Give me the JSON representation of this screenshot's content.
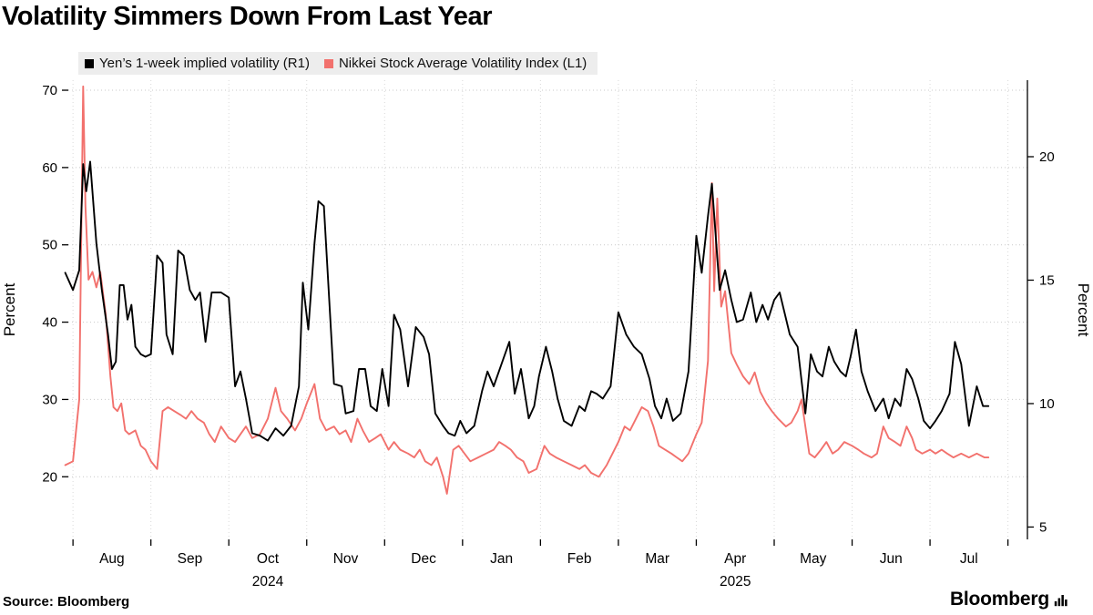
{
  "legend": [
    {
      "label": "Yen’s 1-week implied volatility (R1)",
      "color": "#000000"
    },
    {
      "label": "Nikkei Stock Average Volatility Index  (L1)",
      "color": "#f2716d"
    }
  ],
  "source": "Source: Bloomberg",
  "brand": {
    "name": "Bloomberg"
  },
  "chart_data": {
    "type": "line",
    "title": "Volatility Simmers Down From Last Year",
    "x_axis": {
      "unit": "months since 2024-08-01",
      "month_labels": [
        "Aug",
        "Sep",
        "Oct",
        "Nov",
        "Dec",
        "Jan",
        "Feb",
        "Mar",
        "Apr",
        "May",
        "Jun",
        "Jul"
      ],
      "year_labels": [
        {
          "text": "2024",
          "under_month": "Oct"
        },
        {
          "text": "2025",
          "under_month": "Apr"
        }
      ]
    },
    "axes": {
      "left": {
        "title": "Percent",
        "ticks": [
          20,
          30,
          40,
          50,
          60,
          70
        ],
        "range": [
          11.9,
          71.3
        ]
      },
      "right": {
        "title": "Percent",
        "ticks": [
          5,
          10,
          15,
          20
        ],
        "range": [
          4.5,
          23.1
        ]
      }
    },
    "grid": {
      "horizontal": true,
      "vertical": true
    },
    "legend_position": "top",
    "series": [
      {
        "name": "Yen’s 1-week implied volatility (R1)",
        "axis": "right",
        "color": "#000000",
        "width": 1.9,
        "points": [
          [
            -0.1,
            15.3
          ],
          [
            0.0,
            14.6
          ],
          [
            0.08,
            15.4
          ],
          [
            0.13,
            19.7
          ],
          [
            0.17,
            18.6
          ],
          [
            0.22,
            19.8
          ],
          [
            0.3,
            16.5
          ],
          [
            0.37,
            14.6
          ],
          [
            0.45,
            12.8
          ],
          [
            0.5,
            11.4
          ],
          [
            0.55,
            11.7
          ],
          [
            0.6,
            14.8
          ],
          [
            0.65,
            14.8
          ],
          [
            0.7,
            13.4
          ],
          [
            0.75,
            14.0
          ],
          [
            0.8,
            12.3
          ],
          [
            0.87,
            12.0
          ],
          [
            0.93,
            11.9
          ],
          [
            1.0,
            12.0
          ],
          [
            1.08,
            16.0
          ],
          [
            1.15,
            15.7
          ],
          [
            1.2,
            12.8
          ],
          [
            1.28,
            12.0
          ],
          [
            1.35,
            16.2
          ],
          [
            1.42,
            16.0
          ],
          [
            1.5,
            14.6
          ],
          [
            1.57,
            14.2
          ],
          [
            1.63,
            14.5
          ],
          [
            1.7,
            12.5
          ],
          [
            1.78,
            14.5
          ],
          [
            1.9,
            14.5
          ],
          [
            2.0,
            14.3
          ],
          [
            2.08,
            10.7
          ],
          [
            2.15,
            11.3
          ],
          [
            2.22,
            10.2
          ],
          [
            2.3,
            8.8
          ],
          [
            2.4,
            8.7
          ],
          [
            2.5,
            8.5
          ],
          [
            2.6,
            9.0
          ],
          [
            2.7,
            8.7
          ],
          [
            2.8,
            9.1
          ],
          [
            2.9,
            10.7
          ],
          [
            2.95,
            14.9
          ],
          [
            3.02,
            13.0
          ],
          [
            3.1,
            16.5
          ],
          [
            3.15,
            18.2
          ],
          [
            3.22,
            18.0
          ],
          [
            3.35,
            10.8
          ],
          [
            3.45,
            10.7
          ],
          [
            3.5,
            9.6
          ],
          [
            3.6,
            9.7
          ],
          [
            3.67,
            11.4
          ],
          [
            3.75,
            11.4
          ],
          [
            3.82,
            9.9
          ],
          [
            3.9,
            9.7
          ],
          [
            3.97,
            11.4
          ],
          [
            4.05,
            9.9
          ],
          [
            4.12,
            13.6
          ],
          [
            4.2,
            13.0
          ],
          [
            4.3,
            10.7
          ],
          [
            4.4,
            13.1
          ],
          [
            4.5,
            12.7
          ],
          [
            4.57,
            12.0
          ],
          [
            4.65,
            9.6
          ],
          [
            4.75,
            9.1
          ],
          [
            4.82,
            8.8
          ],
          [
            4.9,
            8.7
          ],
          [
            4.97,
            9.3
          ],
          [
            5.05,
            8.8
          ],
          [
            5.15,
            9.1
          ],
          [
            5.25,
            10.5
          ],
          [
            5.32,
            11.3
          ],
          [
            5.4,
            10.7
          ],
          [
            5.5,
            11.6
          ],
          [
            5.6,
            12.5
          ],
          [
            5.67,
            10.4
          ],
          [
            5.75,
            11.4
          ],
          [
            5.85,
            9.4
          ],
          [
            5.92,
            9.9
          ],
          [
            5.98,
            11.1
          ],
          [
            6.07,
            12.3
          ],
          [
            6.15,
            11.3
          ],
          [
            6.22,
            10.2
          ],
          [
            6.3,
            9.3
          ],
          [
            6.4,
            9.1
          ],
          [
            6.5,
            9.9
          ],
          [
            6.57,
            9.7
          ],
          [
            6.65,
            10.5
          ],
          [
            6.72,
            10.4
          ],
          [
            6.8,
            10.2
          ],
          [
            6.9,
            10.7
          ],
          [
            7.0,
            13.7
          ],
          [
            7.1,
            12.8
          ],
          [
            7.2,
            12.3
          ],
          [
            7.3,
            12.0
          ],
          [
            7.4,
            11.0
          ],
          [
            7.47,
            9.9
          ],
          [
            7.55,
            9.4
          ],
          [
            7.62,
            10.2
          ],
          [
            7.7,
            9.3
          ],
          [
            7.8,
            9.6
          ],
          [
            7.9,
            11.3
          ],
          [
            8.0,
            16.8
          ],
          [
            8.07,
            15.3
          ],
          [
            8.15,
            17.6
          ],
          [
            8.2,
            18.9
          ],
          [
            8.3,
            14.6
          ],
          [
            8.37,
            15.4
          ],
          [
            8.45,
            14.2
          ],
          [
            8.52,
            13.3
          ],
          [
            8.6,
            13.4
          ],
          [
            8.7,
            14.5
          ],
          [
            8.77,
            13.3
          ],
          [
            8.85,
            14.0
          ],
          [
            8.92,
            13.4
          ],
          [
            9.0,
            14.2
          ],
          [
            9.07,
            14.5
          ],
          [
            9.2,
            12.8
          ],
          [
            9.3,
            12.3
          ],
          [
            9.4,
            9.6
          ],
          [
            9.47,
            12.0
          ],
          [
            9.55,
            11.3
          ],
          [
            9.62,
            11.1
          ],
          [
            9.7,
            12.3
          ],
          [
            9.77,
            11.7
          ],
          [
            9.85,
            11.3
          ],
          [
            9.92,
            11.1
          ],
          [
            9.98,
            11.9
          ],
          [
            10.05,
            13.0
          ],
          [
            10.12,
            11.3
          ],
          [
            10.2,
            10.5
          ],
          [
            10.3,
            9.7
          ],
          [
            10.4,
            10.2
          ],
          [
            10.47,
            9.4
          ],
          [
            10.55,
            10.2
          ],
          [
            10.62,
            9.9
          ],
          [
            10.7,
            11.4
          ],
          [
            10.77,
            11.0
          ],
          [
            10.85,
            10.2
          ],
          [
            10.92,
            9.3
          ],
          [
            11.0,
            9.0
          ],
          [
            11.07,
            9.3
          ],
          [
            11.15,
            9.7
          ],
          [
            11.25,
            10.4
          ],
          [
            11.32,
            12.5
          ],
          [
            11.4,
            11.6
          ],
          [
            11.5,
            9.1
          ],
          [
            11.6,
            10.7
          ],
          [
            11.68,
            9.9
          ],
          [
            11.75,
            9.9
          ]
        ]
      },
      {
        "name": "Nikkei Stock Average Volatility Index (L1)",
        "axis": "left",
        "color": "#f2716d",
        "width": 1.9,
        "points": [
          [
            -0.1,
            21.5
          ],
          [
            0.0,
            22.0
          ],
          [
            0.08,
            30.0
          ],
          [
            0.13,
            70.5
          ],
          [
            0.16,
            55.0
          ],
          [
            0.2,
            45.5
          ],
          [
            0.25,
            46.5
          ],
          [
            0.3,
            44.5
          ],
          [
            0.35,
            46.5
          ],
          [
            0.42,
            41.0
          ],
          [
            0.48,
            33.0
          ],
          [
            0.52,
            29.0
          ],
          [
            0.57,
            28.5
          ],
          [
            0.62,
            29.5
          ],
          [
            0.67,
            26.0
          ],
          [
            0.72,
            25.5
          ],
          [
            0.8,
            26.0
          ],
          [
            0.87,
            24.0
          ],
          [
            0.93,
            23.5
          ],
          [
            1.0,
            22.0
          ],
          [
            1.08,
            21.0
          ],
          [
            1.15,
            28.5
          ],
          [
            1.22,
            29.0
          ],
          [
            1.3,
            28.5
          ],
          [
            1.38,
            28.0
          ],
          [
            1.45,
            27.5
          ],
          [
            1.52,
            28.5
          ],
          [
            1.6,
            27.5
          ],
          [
            1.68,
            27.0
          ],
          [
            1.75,
            25.5
          ],
          [
            1.82,
            24.5
          ],
          [
            1.9,
            26.5
          ],
          [
            2.0,
            25.0
          ],
          [
            2.08,
            24.5
          ],
          [
            2.15,
            25.5
          ],
          [
            2.22,
            26.5
          ],
          [
            2.3,
            25.0
          ],
          [
            2.4,
            25.5
          ],
          [
            2.5,
            27.5
          ],
          [
            2.6,
            31.5
          ],
          [
            2.67,
            28.5
          ],
          [
            2.75,
            27.5
          ],
          [
            2.85,
            26.0
          ],
          [
            2.93,
            27.5
          ],
          [
            3.0,
            29.5
          ],
          [
            3.1,
            32.0
          ],
          [
            3.17,
            27.5
          ],
          [
            3.25,
            26.0
          ],
          [
            3.35,
            26.5
          ],
          [
            3.42,
            25.5
          ],
          [
            3.5,
            26.0
          ],
          [
            3.57,
            24.5
          ],
          [
            3.65,
            27.5
          ],
          [
            3.72,
            26.0
          ],
          [
            3.8,
            24.5
          ],
          [
            3.88,
            25.0
          ],
          [
            3.95,
            25.5
          ],
          [
            4.05,
            23.5
          ],
          [
            4.12,
            24.5
          ],
          [
            4.2,
            23.5
          ],
          [
            4.3,
            23.0
          ],
          [
            4.38,
            22.5
          ],
          [
            4.45,
            23.5
          ],
          [
            4.52,
            22.0
          ],
          [
            4.6,
            21.5
          ],
          [
            4.67,
            22.5
          ],
          [
            4.75,
            20.0
          ],
          [
            4.8,
            17.8
          ],
          [
            4.88,
            23.5
          ],
          [
            4.95,
            24.0
          ],
          [
            5.1,
            22.0
          ],
          [
            5.2,
            22.5
          ],
          [
            5.3,
            23.0
          ],
          [
            5.4,
            23.5
          ],
          [
            5.47,
            24.5
          ],
          [
            5.55,
            24.0
          ],
          [
            5.62,
            23.5
          ],
          [
            5.7,
            22.5
          ],
          [
            5.78,
            22.0
          ],
          [
            5.85,
            20.5
          ],
          [
            5.95,
            21.0
          ],
          [
            6.05,
            24.0
          ],
          [
            6.12,
            23.0
          ],
          [
            6.2,
            22.5
          ],
          [
            6.3,
            22.0
          ],
          [
            6.4,
            21.5
          ],
          [
            6.5,
            21.0
          ],
          [
            6.57,
            21.5
          ],
          [
            6.65,
            20.5
          ],
          [
            6.75,
            20.0
          ],
          [
            6.85,
            21.5
          ],
          [
            7.0,
            24.5
          ],
          [
            7.08,
            26.5
          ],
          [
            7.15,
            26.0
          ],
          [
            7.25,
            28.0
          ],
          [
            7.3,
            29.0
          ],
          [
            7.38,
            28.5
          ],
          [
            7.45,
            26.5
          ],
          [
            7.52,
            24.0
          ],
          [
            7.6,
            23.5
          ],
          [
            7.68,
            23.0
          ],
          [
            7.75,
            22.5
          ],
          [
            7.82,
            22.0
          ],
          [
            7.9,
            23.0
          ],
          [
            8.0,
            25.5
          ],
          [
            8.07,
            27.0
          ],
          [
            8.15,
            35.0
          ],
          [
            8.2,
            58.0
          ],
          [
            8.23,
            44.0
          ],
          [
            8.27,
            56.0
          ],
          [
            8.32,
            42.0
          ],
          [
            8.37,
            44.0
          ],
          [
            8.45,
            36.0
          ],
          [
            8.52,
            34.5
          ],
          [
            8.6,
            33.0
          ],
          [
            8.68,
            32.0
          ],
          [
            8.75,
            33.5
          ],
          [
            8.82,
            31.0
          ],
          [
            8.9,
            29.5
          ],
          [
            8.97,
            28.5
          ],
          [
            9.05,
            27.5
          ],
          [
            9.15,
            26.5
          ],
          [
            9.22,
            27.0
          ],
          [
            9.3,
            28.5
          ],
          [
            9.35,
            30.0
          ],
          [
            9.45,
            23.0
          ],
          [
            9.52,
            22.5
          ],
          [
            9.6,
            23.5
          ],
          [
            9.67,
            24.5
          ],
          [
            9.75,
            23.0
          ],
          [
            9.82,
            23.5
          ],
          [
            9.9,
            24.5
          ],
          [
            10.0,
            24.0
          ],
          [
            10.08,
            23.5
          ],
          [
            10.15,
            23.0
          ],
          [
            10.25,
            22.5
          ],
          [
            10.32,
            23.0
          ],
          [
            10.4,
            26.5
          ],
          [
            10.47,
            25.0
          ],
          [
            10.55,
            24.5
          ],
          [
            10.62,
            24.0
          ],
          [
            10.7,
            26.5
          ],
          [
            10.77,
            25.0
          ],
          [
            10.82,
            23.5
          ],
          [
            10.9,
            23.0
          ],
          [
            11.0,
            23.5
          ],
          [
            11.07,
            23.0
          ],
          [
            11.15,
            23.5
          ],
          [
            11.22,
            23.0
          ],
          [
            11.3,
            22.5
          ],
          [
            11.4,
            23.0
          ],
          [
            11.5,
            22.5
          ],
          [
            11.6,
            23.0
          ],
          [
            11.7,
            22.5
          ],
          [
            11.75,
            22.5
          ]
        ]
      }
    ]
  }
}
